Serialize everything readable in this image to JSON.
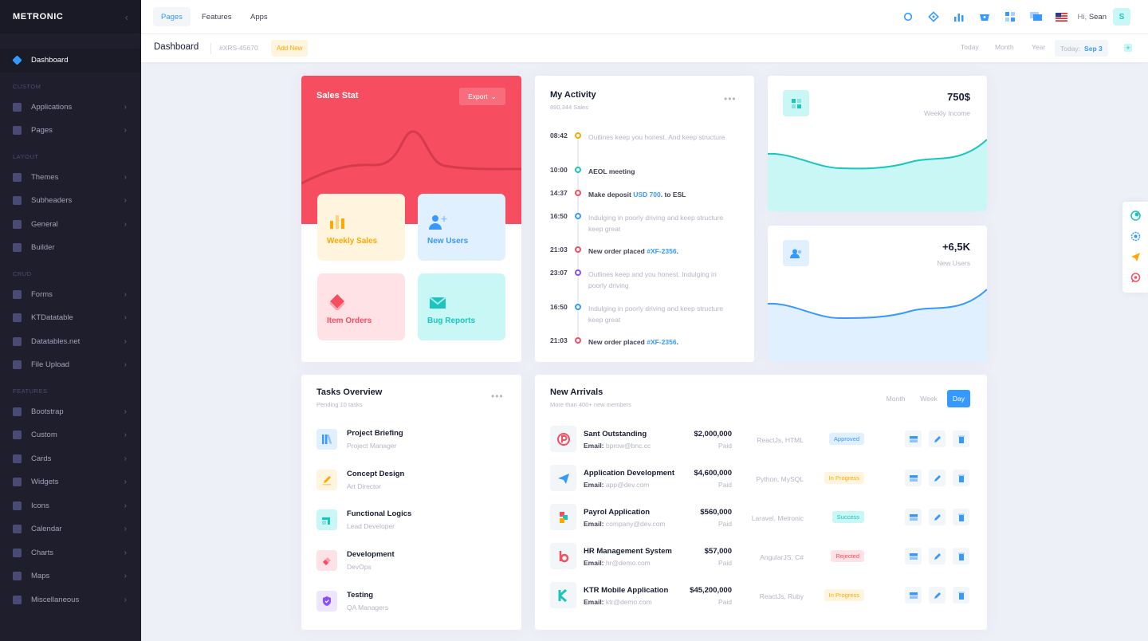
{
  "sidebar": {
    "brand": "METRONIC",
    "toggle": "‹",
    "dashboard": "Dashboard",
    "sec_custom": "CUSTOM",
    "applications": "Applications",
    "pages": "Pages",
    "sec_layout": "LAYOUT",
    "themes": "Themes",
    "subheaders": "Subheaders",
    "general": "General",
    "builder": "Builder",
    "sec_crud": "CRUD",
    "forms": "Forms",
    "ktdatatable": "KTDatatable",
    "datatables": "Datatables.net",
    "fileupload": "File Upload",
    "sec_features": "FEATURES",
    "bootstrap": "Bootstrap",
    "custom": "Custom",
    "cards": "Cards",
    "widgets": "Widgets",
    "icons": "Icons",
    "calendar": "Calendar",
    "charts": "Charts",
    "maps": "Maps",
    "misc": "Miscellaneous"
  },
  "header": {
    "tabs": [
      "Pages",
      "Features",
      "Apps"
    ],
    "greeting": "Hi,",
    "user": "Sean",
    "avatar": "S"
  },
  "subheader": {
    "title": "Dashboard",
    "code": "#XRS-45670",
    "add": "Add New",
    "today": "Today",
    "month": "Month",
    "year": "Year",
    "today_label": "Today:",
    "today_date": "Sep 3"
  },
  "sales": {
    "title": "Sales Stat",
    "export": "Export",
    "tiles": [
      "Weekly Sales",
      "New Users",
      "Item Orders",
      "Bug Reports"
    ]
  },
  "activity": {
    "title": "My Activity",
    "sub": "890,344 Sales",
    "items": [
      {
        "time": "08:42",
        "text": "Outlines keep you honest. And keep structure",
        "color": "#ffa800",
        "bold": false
      },
      {
        "time": "10:00",
        "text": "AEOL meeting",
        "color": "#1bc5bd",
        "bold": true
      },
      {
        "time": "14:37",
        "pre": "Make deposit ",
        "link": "USD 700",
        "post": ". to ESL",
        "color": "#f64e60",
        "bold": true
      },
      {
        "time": "16:50",
        "text": "Indulging in poorly driving and keep structure keep great",
        "color": "#3699ff",
        "bold": false
      },
      {
        "time": "21:03",
        "pre": "New order placed ",
        "link": "#XF-2356",
        "post": ".",
        "color": "#f64e60",
        "bold": true
      },
      {
        "time": "23:07",
        "text": "Outlines keep and you honest. Indulging in poorly driving",
        "color": "#8950fc",
        "bold": false
      },
      {
        "time": "16:50",
        "text": "Indulging in poorly driving and keep structure keep great",
        "color": "#3699ff",
        "bold": false
      },
      {
        "time": "21:03",
        "pre": "New order placed ",
        "link": "#XF-2356",
        "post": ".",
        "color": "#f64e60",
        "bold": true
      }
    ]
  },
  "income": {
    "value": "750$",
    "label": "Weekly Income"
  },
  "users": {
    "value": "+6,5K",
    "label": "New Users"
  },
  "tasks": {
    "title": "Tasks Overview",
    "sub": "Pending 10 tasks",
    "items": [
      {
        "t": "Project Briefing",
        "s": "Project Manager"
      },
      {
        "t": "Concept Design",
        "s": "Art Director"
      },
      {
        "t": "Functional Logics",
        "s": "Lead Developer"
      },
      {
        "t": "Development",
        "s": "DevOps"
      },
      {
        "t": "Testing",
        "s": "QA Managers"
      }
    ]
  },
  "arrivals": {
    "title": "New Arrivals",
    "sub": "More than 400+ new members",
    "tabs": [
      "Month",
      "Week",
      "Day"
    ],
    "email_label": "Email:",
    "rows": [
      {
        "name": "Sant Outstanding",
        "email": "bprow@bnc.cc",
        "amount": "$2,000,000",
        "paid": "Paid",
        "tech": "ReactJs, HTML",
        "status": "Approved"
      },
      {
        "name": "Application Development",
        "email": "app@dev.com",
        "amount": "$4,600,000",
        "paid": "Paid",
        "tech": "Python, MySQL",
        "status": "In Progress"
      },
      {
        "name": "Payrol Application",
        "email": "company@dev.com",
        "amount": "$560,000",
        "paid": "Paid",
        "tech": "Laravel, Metronic",
        "status": "Success"
      },
      {
        "name": "HR Management System",
        "email": "hr@demo.com",
        "amount": "$57,000",
        "paid": "Paid",
        "tech": "AngularJS, C#",
        "status": "Rejected"
      },
      {
        "name": "KTR Mobile Application",
        "email": "ktr@demo.com",
        "amount": "$45,200,000",
        "paid": "Paid",
        "tech": "ReactJs, Ruby",
        "status": "In Progress"
      }
    ]
  }
}
